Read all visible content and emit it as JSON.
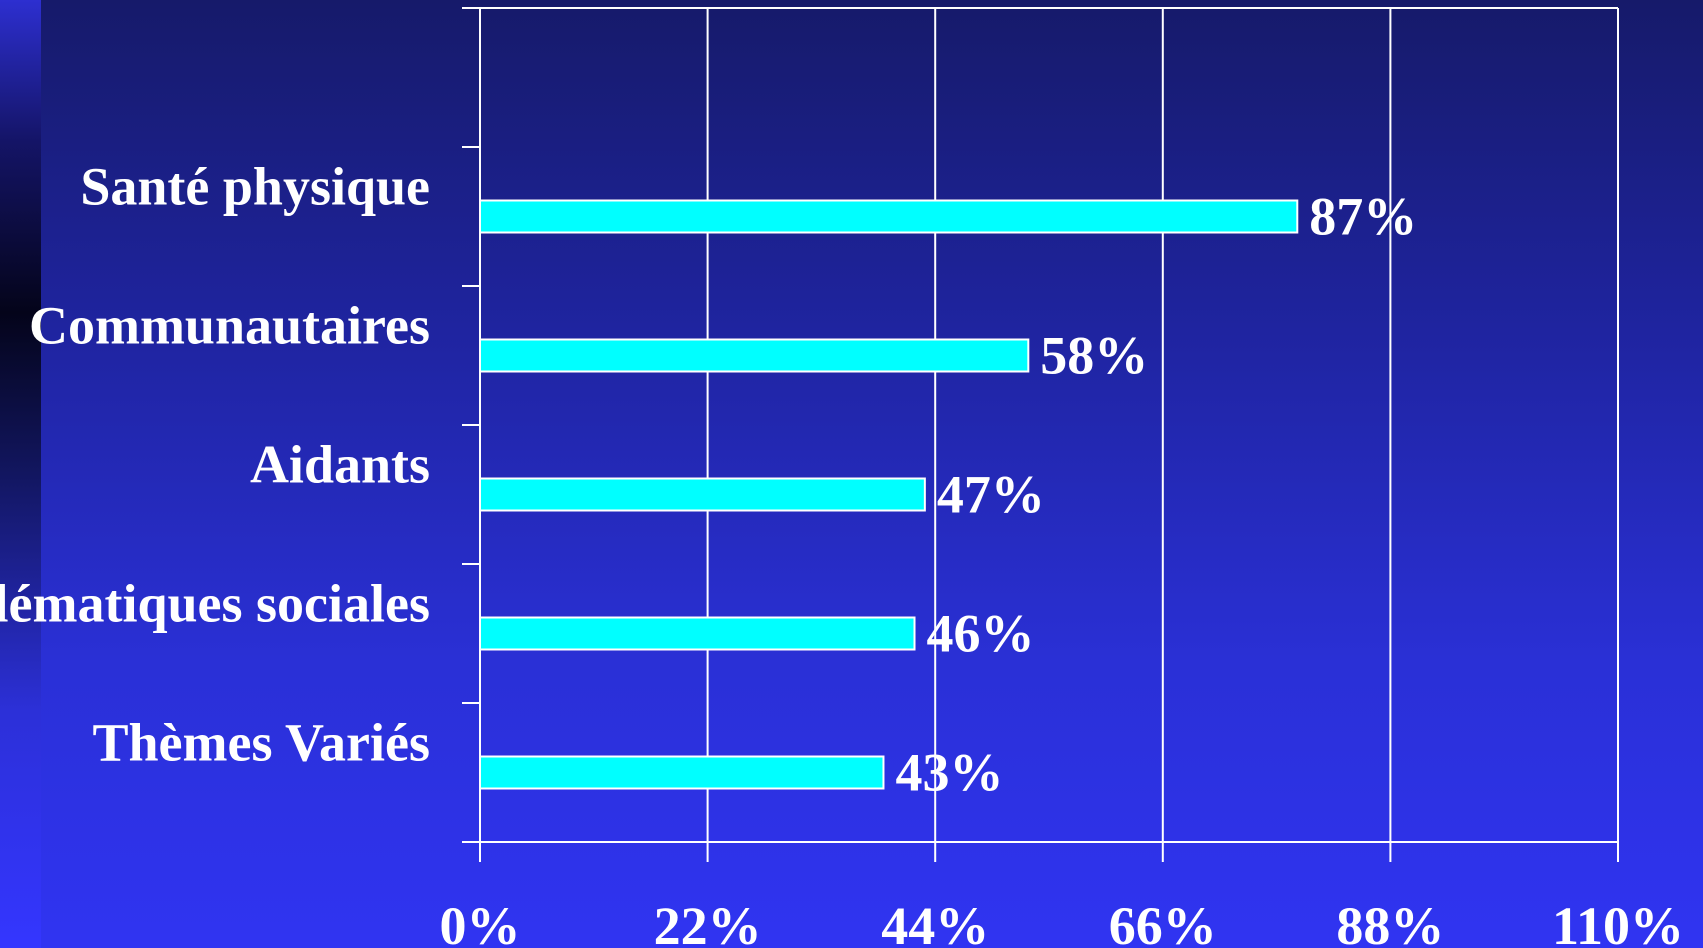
{
  "chart_data": {
    "type": "bar",
    "orientation": "horizontal",
    "categories": [
      "Santé physique",
      "Communautaires",
      "Aidants",
      "Problématiques sociales",
      "Thèmes Variés"
    ],
    "values": [
      79,
      53,
      43,
      42,
      39
    ],
    "value_labels": [
      "87%",
      "58%",
      "47%",
      "46%",
      "43%"
    ],
    "xticks": [
      0,
      22,
      44,
      66,
      88,
      110
    ],
    "xtick_labels": [
      "0%",
      "22%",
      "44%",
      "66%",
      "88%",
      "110%"
    ],
    "xlim": [
      0,
      110
    ],
    "grid": true,
    "bar_color": "#00ffff",
    "text_color": "#ffffff",
    "title": "",
    "xlabel": "",
    "ylabel": ""
  }
}
